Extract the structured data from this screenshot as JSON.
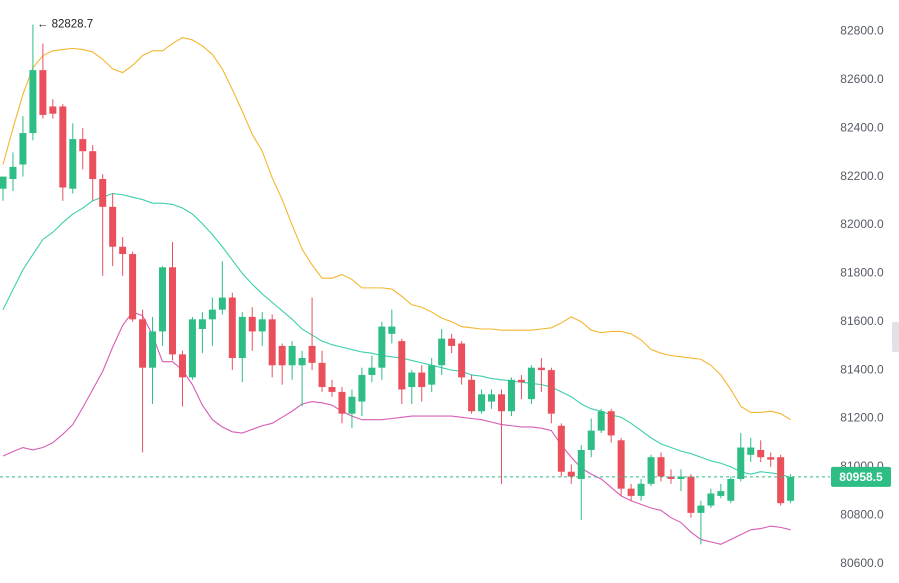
{
  "chart_data": {
    "type": "candlestick",
    "ylim": [
      80520,
      82930
    ],
    "yticks": [
      {
        "value": 80600,
        "label": "80600.0"
      },
      {
        "value": 80800,
        "label": "80800.0"
      },
      {
        "value": 81000,
        "label": "81000.0"
      },
      {
        "value": 81200,
        "label": "81200.0"
      },
      {
        "value": 81400,
        "label": "81400.0"
      },
      {
        "value": 81600,
        "label": "81600.0"
      },
      {
        "value": 81800,
        "label": "81800.0"
      },
      {
        "value": 82000,
        "label": "82000.0"
      },
      {
        "value": 82200,
        "label": "82200.0"
      },
      {
        "value": 82400,
        "label": "82400.0"
      },
      {
        "value": 82600,
        "label": "82600.0"
      },
      {
        "value": 82800,
        "label": "82800.0"
      }
    ],
    "up_color": "#2ebd85",
    "down_color": "#e9505c",
    "candles": {
      "open": [
        82150,
        82190,
        82250,
        82380,
        82640,
        82490,
        82490,
        82150,
        82355,
        82305,
        82190,
        82075,
        81910,
        81880,
        81610,
        81410,
        81560,
        81825,
        81465,
        81370,
        81570,
        81610,
        81650,
        81700,
        81450,
        81620,
        81560,
        81610,
        81500,
        81420,
        81420,
        81500,
        81430,
        81330,
        81310,
        81220,
        81270,
        81380,
        81410,
        81550,
        81520,
        81330,
        81390,
        81340,
        81420,
        81530,
        81510,
        81360,
        81230,
        81270,
        81300,
        81230,
        81360,
        81280,
        81410,
        81400,
        81170,
        80980,
        80950,
        81070,
        81150,
        81230,
        81110,
        80910,
        80880,
        80930,
        81040,
        80960,
        80950,
        80960,
        80810,
        80840,
        80880,
        80860,
        80950,
        81050,
        81070,
        81040,
        81040,
        80860
      ],
      "high": [
        82200,
        82300,
        82450,
        82828.7,
        82750,
        82520,
        82500,
        82420,
        82400,
        82330,
        82210,
        82130,
        81950,
        81890,
        81650,
        81620,
        81830,
        81930,
        81480,
        81620,
        81640,
        81700,
        81850,
        81720,
        81640,
        81660,
        81640,
        81630,
        81510,
        81520,
        81480,
        81700,
        81480,
        81360,
        81330,
        81320,
        81410,
        81460,
        81600,
        81650,
        81530,
        81400,
        81420,
        81450,
        81570,
        81550,
        81520,
        81380,
        81320,
        81320,
        81320,
        81370,
        81380,
        81420,
        81450,
        81410,
        81180,
        81010,
        81090,
        81200,
        81240,
        81240,
        81120,
        80930,
        80950,
        81050,
        81060,
        80990,
        80990,
        80970,
        80860,
        80910,
        80930,
        80960,
        81140,
        81120,
        81110,
        81060,
        81050,
        80970
      ],
      "low": [
        82100,
        82140,
        82200,
        82350,
        82440,
        82440,
        82100,
        82130,
        82230,
        82100,
        81790,
        81830,
        81790,
        81600,
        81060,
        81260,
        81500,
        81440,
        81250,
        81360,
        81470,
        81500,
        81630,
        81400,
        81350,
        81480,
        81500,
        81370,
        81340,
        81360,
        81250,
        81400,
        81310,
        81290,
        81180,
        81160,
        81210,
        81350,
        81360,
        81510,
        81260,
        81260,
        81270,
        81310,
        81380,
        81470,
        81340,
        81220,
        81220,
        81240,
        80930,
        81210,
        81280,
        81260,
        81310,
        81180,
        80960,
        80930,
        80780,
        81040,
        81140,
        81100,
        80880,
        80860,
        80860,
        80920,
        80940,
        80930,
        80900,
        80790,
        80680,
        80830,
        80870,
        80850,
        80940,
        81020,
        81020,
        81000,
        80840,
        80850
      ],
      "close": [
        82200,
        82240,
        82380,
        82640,
        82455,
        82460,
        82155,
        82355,
        82305,
        82190,
        82075,
        81910,
        81880,
        81610,
        81410,
        81560,
        81825,
        81465,
        81370,
        81610,
        81610,
        81650,
        81700,
        81450,
        81620,
        81560,
        81610,
        81420,
        81420,
        81500,
        81450,
        81430,
        81330,
        81310,
        81220,
        81290,
        81380,
        81410,
        81580,
        81580,
        81320,
        81390,
        81330,
        81420,
        81530,
        81500,
        81370,
        81230,
        81300,
        81300,
        81230,
        81360,
        81350,
        81410,
        81400,
        81220,
        80980,
        80960,
        81070,
        81150,
        81230,
        81130,
        80910,
        80880,
        80930,
        81040,
        80960,
        80950,
        80960,
        80810,
        80840,
        80890,
        80900,
        80950,
        81080,
        81080,
        81040,
        81030,
        80850,
        80958.5
      ]
    },
    "bands": [
      {
        "color": "#f4b630",
        "values": [
          82250,
          82400,
          82540,
          82650,
          82700,
          82720,
          82725,
          82730,
          82725,
          82715,
          82685,
          82645,
          82630,
          82660,
          82700,
          82720,
          82720,
          82750,
          82775,
          82765,
          82740,
          82705,
          82645,
          82560,
          82470,
          82375,
          82305,
          82195,
          82105,
          82000,
          81900,
          81835,
          81780,
          81780,
          81795,
          81775,
          81740,
          81740,
          81740,
          81735,
          81705,
          81670,
          81660,
          81640,
          81615,
          81600,
          81580,
          81575,
          81570,
          81570,
          81565,
          81565,
          81565,
          81565,
          81570,
          81575,
          81595,
          81620,
          81600,
          81565,
          81555,
          81560,
          81560,
          81550,
          81525,
          81485,
          81470,
          81460,
          81455,
          81450,
          81445,
          81420,
          81380,
          81320,
          81250,
          81225,
          81225,
          81230,
          81220,
          81195
        ]
      },
      {
        "color": "#3ccfae",
        "values": [
          81650,
          81733,
          81815,
          81878,
          81940,
          81970,
          82010,
          82045,
          82070,
          82100,
          82115,
          82130,
          82125,
          82115,
          82105,
          82090,
          82090,
          82085,
          82070,
          82045,
          82005,
          81960,
          81910,
          81855,
          81800,
          81755,
          81715,
          81680,
          81645,
          81610,
          81570,
          81545,
          81520,
          81505,
          81495,
          81485,
          81475,
          81470,
          81460,
          81455,
          81450,
          81440,
          81430,
          81420,
          81410,
          81400,
          81395,
          81380,
          81375,
          81365,
          81360,
          81355,
          81350,
          81345,
          81340,
          81330,
          81310,
          81290,
          81260,
          81240,
          81230,
          81215,
          81205,
          81180,
          81150,
          81120,
          81095,
          81080,
          81065,
          81055,
          81040,
          81025,
          81015,
          81000,
          80980,
          80970,
          80980,
          80975,
          80970,
          80955
        ]
      },
      {
        "color": "#d65cb6",
        "values": [
          81045,
          81063,
          81080,
          81070,
          81080,
          81100,
          81135,
          81175,
          81245,
          81320,
          81395,
          81495,
          81585,
          81640,
          81625,
          81545,
          81435,
          81435,
          81400,
          81340,
          81255,
          81195,
          81165,
          81145,
          81140,
          81155,
          81170,
          81180,
          81205,
          81230,
          81260,
          81270,
          81265,
          81255,
          81230,
          81210,
          81195,
          81195,
          81195,
          81200,
          81205,
          81210,
          81210,
          81210,
          81210,
          81210,
          81205,
          81200,
          81195,
          81185,
          81175,
          81170,
          81165,
          81165,
          81160,
          81150,
          81090,
          81040,
          80995,
          80970,
          80950,
          80915,
          80880,
          80860,
          80845,
          80830,
          80820,
          80790,
          80770,
          80730,
          80700,
          80690,
          80680,
          80700,
          80720,
          80740,
          80745,
          80755,
          80750,
          80740
        ]
      }
    ],
    "high_marker": {
      "label": "← 82828.7"
    },
    "last_price": {
      "value": 80958.5,
      "label": "80958.5",
      "color": "#2ebd85"
    }
  }
}
